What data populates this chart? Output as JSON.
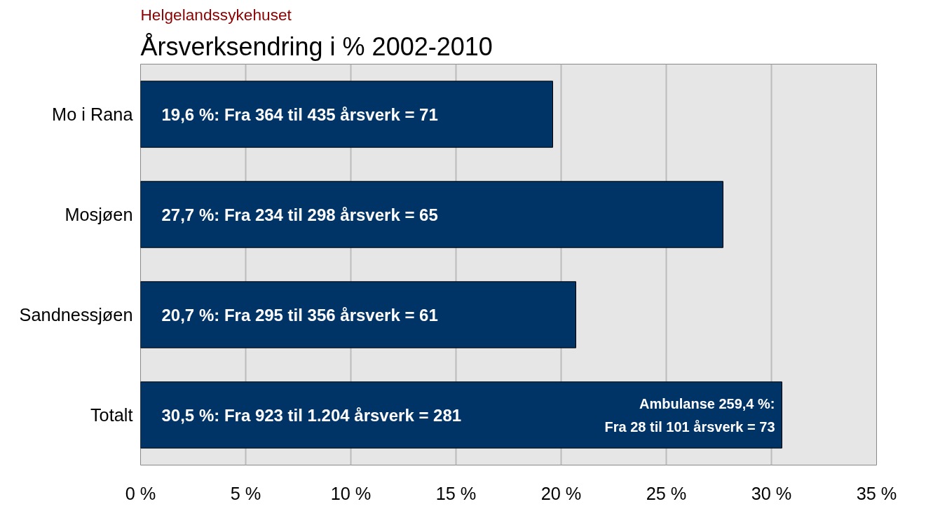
{
  "chart_data": {
    "type": "bar",
    "orientation": "horizontal",
    "subtitle": "Helgelandssykehuset",
    "title": "Årsverksendring i % 2002-2010",
    "categories": [
      "Mo i Rana",
      "Mosjøen",
      "Sandnessjøen",
      "Totalt"
    ],
    "values": [
      19.6,
      27.7,
      20.7,
      30.5
    ],
    "color": "#003366",
    "value_labels": [
      "19,6 %: Fra 364 til 435 årsverk = 71",
      "27,7 %: Fra 234 til 298 årsverk = 65",
      "20,7 %: Fra 295 til 356 årsverk = 61",
      "30,5 %: Fra 923 til 1.204 årsverk = 281"
    ],
    "annotations": [
      "Ambulanse 259,4 %:\nFra 28 til 101 årsverk = 73"
    ],
    "xlim": [
      0,
      35
    ],
    "xticks": [
      {
        "value": 0,
        "label": "0 %"
      },
      {
        "value": 5,
        "label": "5 %"
      },
      {
        "value": 10,
        "label": "10 %"
      },
      {
        "value": 15,
        "label": "15 %"
      },
      {
        "value": 20,
        "label": "20 %"
      },
      {
        "value": 25,
        "label": "25 %"
      },
      {
        "value": 30,
        "label": "30 %"
      },
      {
        "value": 35,
        "label": "35 %"
      }
    ],
    "grid": "x"
  }
}
